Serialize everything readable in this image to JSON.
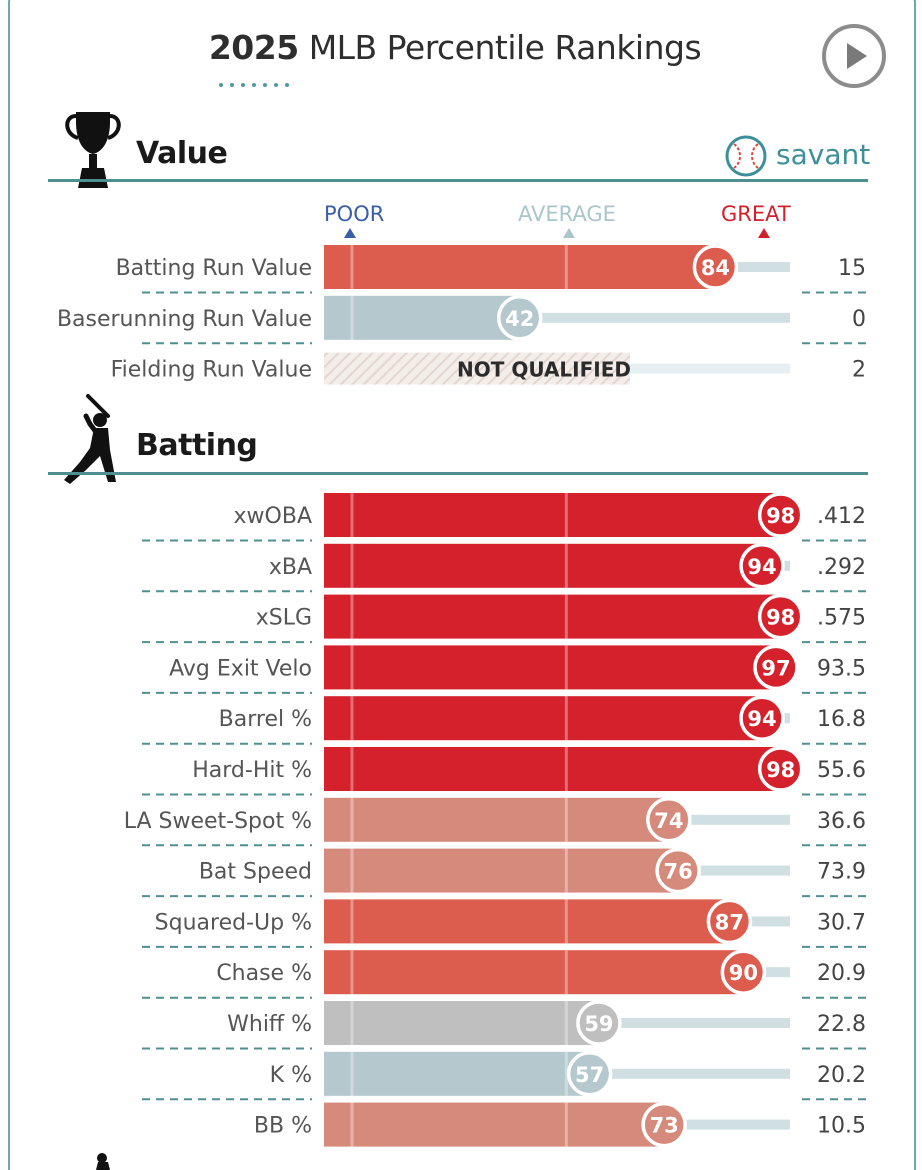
{
  "header": {
    "title_bold": "2025",
    "title_rest": "MLB Percentile Rankings",
    "play_button": "play-icon"
  },
  "brand": {
    "name": "savant",
    "color": "#3d9099"
  },
  "scale": {
    "poor": "POOR",
    "average": "AVERAGE",
    "great": "GREAT",
    "poor_color": "#3b5ea8",
    "average_color": "#a9c6cb",
    "great_color": "#d0212c"
  },
  "colors": {
    "great": "#d4212c",
    "above": "#dc5c4e",
    "mid_above": "#d68a7c",
    "neutral": "#bfbfbf",
    "below": "#b4c8cd",
    "track": "#cfdfe2",
    "rule": "#4f8f92"
  },
  "chart_data": {
    "type": "bar",
    "title": "2025 MLB Percentile Rankings",
    "xlim": [
      0,
      100
    ],
    "sections": [
      {
        "name": "Value",
        "icon": "trophy-icon",
        "rows": [
          {
            "label": "Batting Run Value",
            "percentile": 84,
            "value": "15",
            "qualified": true
          },
          {
            "label": "Baserunning Run Value",
            "percentile": 42,
            "value": "0",
            "qualified": true
          },
          {
            "label": "Fielding Run Value",
            "percentile": null,
            "value": "2",
            "qualified": false,
            "note": "NOT QUALIFIED"
          }
        ]
      },
      {
        "name": "Batting",
        "icon": "batter-icon",
        "rows": [
          {
            "label": "xwOBA",
            "percentile": 98,
            "value": ".412",
            "qualified": true
          },
          {
            "label": "xBA",
            "percentile": 94,
            "value": ".292",
            "qualified": true
          },
          {
            "label": "xSLG",
            "percentile": 98,
            "value": ".575",
            "qualified": true
          },
          {
            "label": "Avg Exit Velo",
            "percentile": 97,
            "value": "93.5",
            "qualified": true
          },
          {
            "label": "Barrel %",
            "percentile": 94,
            "value": "16.8",
            "qualified": true
          },
          {
            "label": "Hard-Hit %",
            "percentile": 98,
            "value": "55.6",
            "qualified": true
          },
          {
            "label": "LA Sweet-Spot %",
            "percentile": 74,
            "value": "36.6",
            "qualified": true
          },
          {
            "label": "Bat Speed",
            "percentile": 76,
            "value": "73.9",
            "qualified": true
          },
          {
            "label": "Squared-Up %",
            "percentile": 87,
            "value": "30.7",
            "qualified": true
          },
          {
            "label": "Chase %",
            "percentile": 90,
            "value": "20.9",
            "qualified": true
          },
          {
            "label": "Whiff %",
            "percentile": 59,
            "value": "22.8",
            "qualified": true
          },
          {
            "label": "K %",
            "percentile": 57,
            "value": "20.2",
            "qualified": true
          },
          {
            "label": "BB %",
            "percentile": 73,
            "value": "10.5",
            "qualified": true
          }
        ]
      }
    ]
  }
}
